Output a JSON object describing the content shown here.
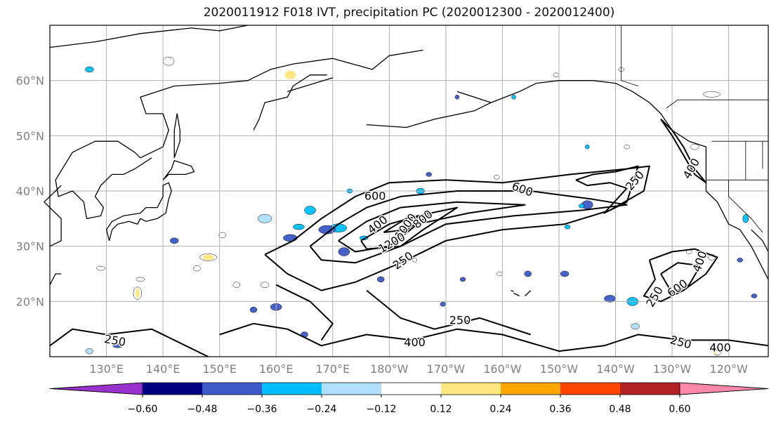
{
  "title": "2020011912 F018 IVT, precipitation PC (2020012300 - 2020012400)",
  "map": {
    "lat_labels": [
      "60°N",
      "50°N",
      "40°N",
      "30°N",
      "20°N"
    ],
    "lon_labels": [
      "130°E",
      "140°E",
      "150°E",
      "160°E",
      "170°E",
      "180°W",
      "170°W",
      "160°W",
      "150°W",
      "140°W",
      "130°W",
      "120°W"
    ],
    "contour_labels": [
      {
        "text": "600",
        "lon": 177.5,
        "lat": 39.0,
        "rot": 0
      },
      {
        "text": "400",
        "lon": 178.0,
        "lat": 33.8,
        "rot": -38
      },
      {
        "text": "1000",
        "lon": 183.0,
        "lat": 33.5,
        "rot": -55
      },
      {
        "text": "800",
        "lon": 186.0,
        "lat": 34.8,
        "rot": -40
      },
      {
        "text": "1200",
        "lon": 180.5,
        "lat": 30.5,
        "rot": -30
      },
      {
        "text": "250",
        "lon": 182.5,
        "lat": 27.3,
        "rot": -35
      },
      {
        "text": "600",
        "lon": 203.5,
        "lat": 40.2,
        "rot": 20
      },
      {
        "text": "250",
        "lon": 223.5,
        "lat": 41.8,
        "rot": -50
      },
      {
        "text": "400",
        "lon": 233.5,
        "lat": 44.0,
        "rot": -60
      },
      {
        "text": "400",
        "lon": 235.0,
        "lat": 27.2,
        "rot": -70
      },
      {
        "text": "600",
        "lon": 231.0,
        "lat": 22.3,
        "rot": -35
      },
      {
        "text": "250",
        "lon": 227.0,
        "lat": 20.8,
        "rot": -60
      },
      {
        "text": "250",
        "lon": 192.5,
        "lat": 16.5,
        "rot": 0
      },
      {
        "text": "400",
        "lon": 184.5,
        "lat": 12.5,
        "rot": 0
      },
      {
        "text": "250",
        "lon": 231.5,
        "lat": 12.5,
        "rot": 15
      },
      {
        "text": "400",
        "lon": 238.5,
        "lat": 11.5,
        "rot": 0
      },
      {
        "text": "250",
        "lon": 131.5,
        "lat": 12.8,
        "rot": 10
      }
    ]
  },
  "colorbar": {
    "tick_labels": [
      "−0.60",
      "−0.48",
      "−0.36",
      "−0.24",
      "−0.12",
      "0.12",
      "0.24",
      "0.36",
      "0.48",
      "0.60"
    ],
    "colors": [
      "#9932CC",
      "#000080",
      "#3C5AC8",
      "#00BFFF",
      "#B0E0FF",
      "#FFFFFF",
      "#FFE680",
      "#FFA500",
      "#FF4500",
      "#B22222",
      "#FF88AA"
    ]
  }
}
